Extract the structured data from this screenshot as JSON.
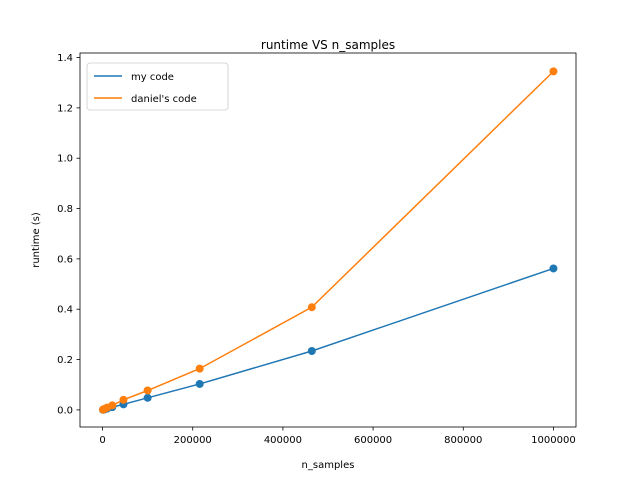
{
  "chart_data": {
    "type": "line",
    "title": "runtime VS n_samples",
    "xlabel": "n_samples",
    "ylabel": "runtime (s)",
    "xlim": [
      -50000,
      1050000
    ],
    "ylim": [
      -0.068,
      1.418
    ],
    "xticks": [
      0,
      200000,
      400000,
      600000,
      800000,
      1000000
    ],
    "xtick_labels": [
      "0",
      "200000",
      "400000",
      "600000",
      "800000",
      "1000000"
    ],
    "yticks": [
      0.0,
      0.2,
      0.4,
      0.6,
      0.8,
      1.0,
      1.2,
      1.4
    ],
    "ytick_labels": [
      "0.0",
      "0.2",
      "0.4",
      "0.6",
      "0.8",
      "1.0",
      "1.2",
      "1.4"
    ],
    "grid": false,
    "legend_position": "top-left",
    "x": [
      1000,
      2154,
      4642,
      10000,
      21544,
      46416,
      100000,
      215443,
      464159,
      1000000
    ],
    "series": [
      {
        "name": "my code",
        "color": "#1f77b4",
        "values": [
          0.0005,
          0.001,
          0.002,
          0.005,
          0.011,
          0.022,
          0.048,
          0.103,
          0.234,
          0.562
        ]
      },
      {
        "name": "daniel's code",
        "color": "#ff7f0e",
        "values": [
          0.001,
          0.002,
          0.004,
          0.009,
          0.018,
          0.04,
          0.077,
          0.164,
          0.408,
          1.345
        ]
      }
    ]
  }
}
